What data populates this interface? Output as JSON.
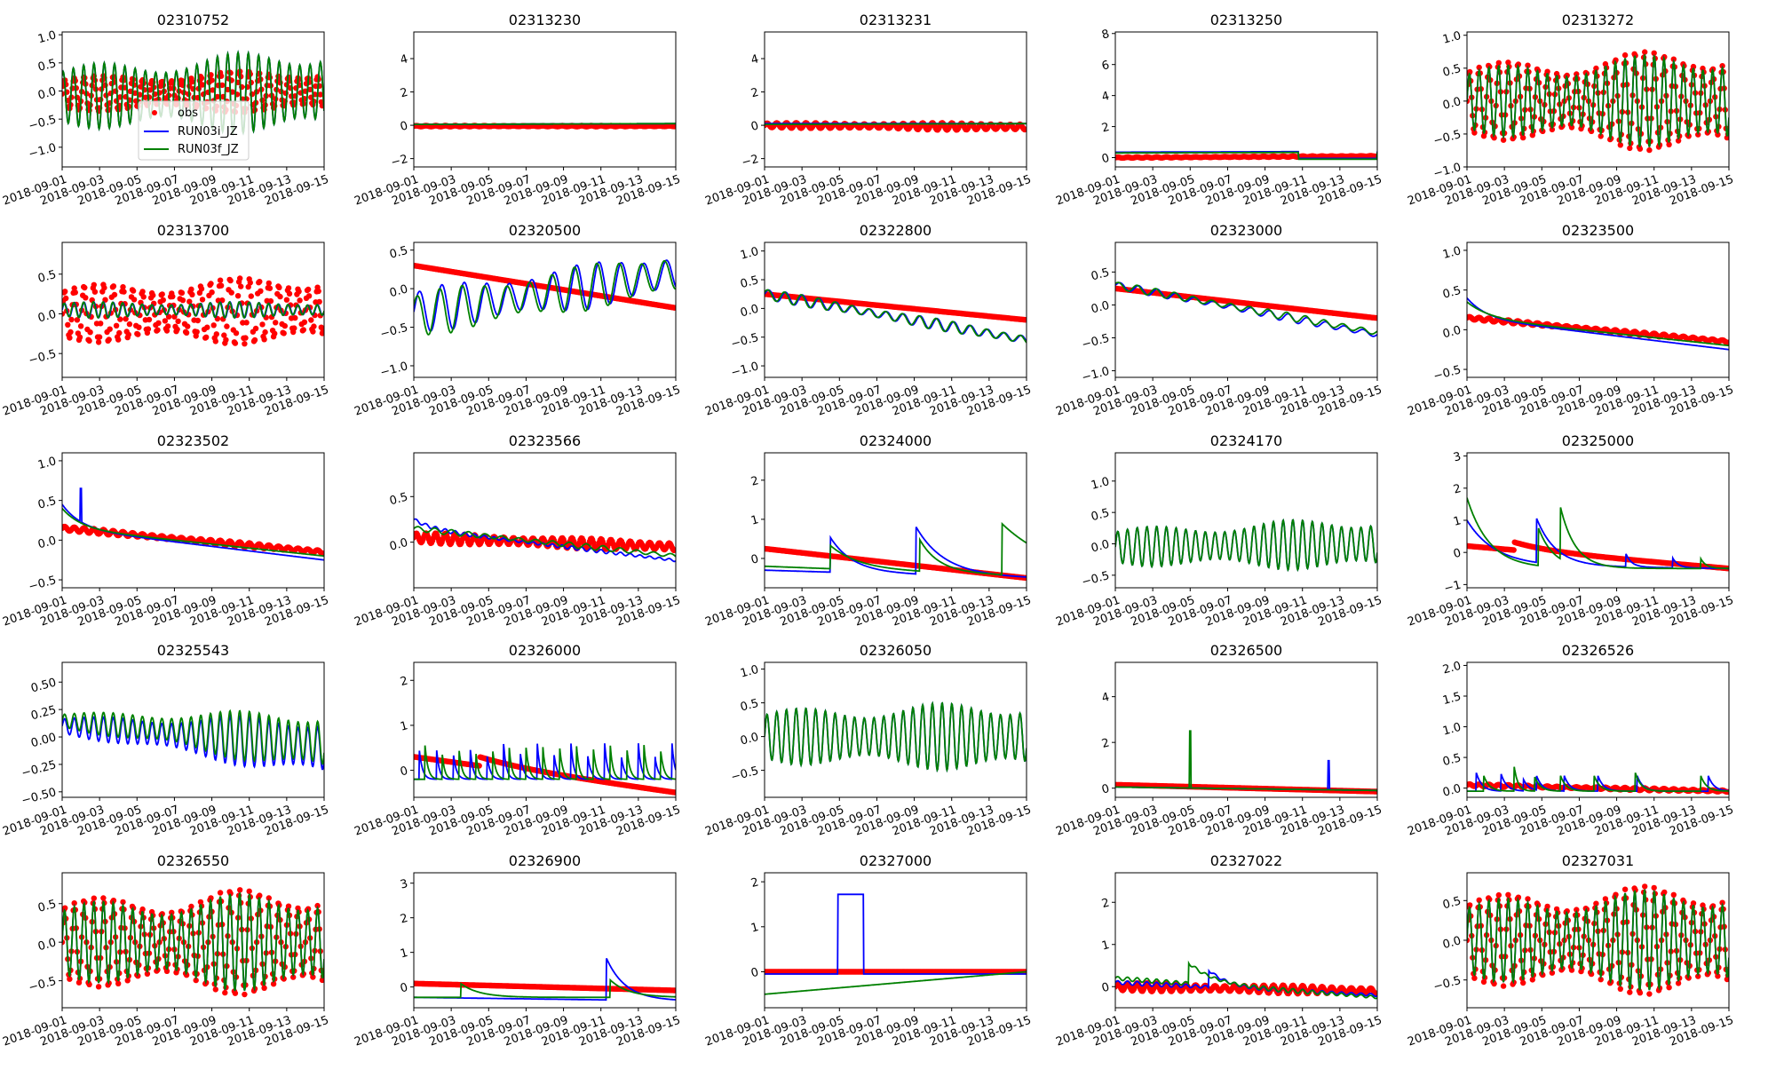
{
  "colors": {
    "obs": "#ff0000",
    "run_i": "#0000ff",
    "run_f": "#008000"
  },
  "legend": {
    "obs": "obs",
    "run_i": "RUN03i_JZ",
    "run_f": "RUN03f_JZ"
  },
  "xticks": [
    "2018-09-01",
    "2018-09-03",
    "2018-09-05",
    "2018-09-07",
    "2018-09-09",
    "2018-09-11",
    "2018-09-13",
    "2018-09-15"
  ],
  "chart_data": [
    {
      "type": "line",
      "title": "02310752",
      "xlim_days": [
        0,
        14
      ],
      "ylim": [
        -1.35,
        1.05
      ],
      "yticks": [
        "−1.0",
        "−0.5",
        "0.0",
        "0.5",
        "1.0"
      ],
      "legend": "lower-center",
      "obs": {
        "trend": [
          -0.05,
          0
        ],
        "amp": [
          0.3,
          0.4
        ],
        "period": 0.52
      },
      "i": {
        "trend": [
          -0.1,
          0
        ],
        "amp": [
          0.55,
          0.8
        ],
        "period": 0.55,
        "phase": 1
      },
      "f": {
        "trend": [
          -0.1,
          0
        ],
        "amp": [
          0.55,
          0.8
        ],
        "period": 0.55,
        "phase": 1
      }
    },
    {
      "type": "line",
      "title": "02313230",
      "ylim": [
        -2.5,
        5.6
      ],
      "yticks": [
        "−2",
        "0",
        "2",
        "4"
      ],
      "obs": {
        "trend": [
          -0.05,
          -0.05
        ],
        "amp": 0.03
      },
      "i": {
        "trend": [
          0.05,
          0.1
        ]
      },
      "f": {
        "trend": [
          0.05,
          0.1
        ]
      }
    },
    {
      "type": "line",
      "title": "02313231",
      "ylim": [
        -2.5,
        5.6
      ],
      "yticks": [
        "−2",
        "0",
        "2",
        "4"
      ],
      "obs": {
        "trend": [
          0,
          -0.1
        ],
        "amp": [
          0.15,
          0.25
        ],
        "period": 0.52
      },
      "i": {
        "trend": [
          0.1,
          0.1
        ]
      },
      "f": {
        "trend": [
          0.05,
          0.1
        ]
      }
    },
    {
      "type": "line",
      "title": "02313250",
      "ylim": [
        -0.6,
        8.1
      ],
      "yticks": [
        "0",
        "2",
        "4",
        "6",
        "8"
      ],
      "obs": {
        "trend": [
          0,
          0.1
        ],
        "amp": 0.03
      },
      "i": {
        "trend": [
          0.35,
          0.4
        ],
        "blocks": [
          [
            9.8,
            14,
            -0.05
          ]
        ]
      },
      "f": {
        "trend": [
          0.3,
          0.35
        ],
        "blocks": [
          [
            9.8,
            14,
            -0.1
          ]
        ]
      }
    },
    {
      "type": "line",
      "title": "02313272",
      "ylim": [
        -1.0,
        1.05
      ],
      "yticks": [
        "−1.0",
        "−0.5",
        "0.0",
        "0.5",
        "1.0"
      ],
      "obs": {
        "trend": [
          0,
          0
        ],
        "amp": [
          0.55,
          0.85
        ],
        "period": 0.52
      },
      "i": {
        "trend": [
          0,
          0
        ],
        "amp": [
          0.5,
          0.8
        ],
        "period": 0.52
      },
      "f": {
        "trend": [
          0,
          0
        ],
        "amp": [
          0.5,
          0.8
        ],
        "period": 0.52
      }
    },
    {
      "type": "line",
      "title": "02313700",
      "ylim": [
        -0.8,
        0.9
      ],
      "yticks": [
        "−0.5",
        "0.0",
        "0.5"
      ],
      "obs": {
        "trend": [
          0,
          0.05
        ],
        "amp": [
          0.35,
          0.45
        ],
        "period": 0.52
      },
      "i": {
        "trend": [
          0.05,
          0.05
        ],
        "amp": 0.1,
        "period": 0.52
      },
      "f": {
        "trend": [
          0.05,
          0.05
        ],
        "amp": 0.1,
        "period": 0.52,
        "phase": 0.3
      }
    },
    {
      "type": "line",
      "title": "02320500",
      "ylim": [
        -1.15,
        0.6
      ],
      "yticks": [
        "−1.0",
        "−0.5",
        "0.0",
        "0.5"
      ],
      "obs": {
        "trend": [
          0.3,
          -0.25
        ]
      },
      "i": {
        "trend": [
          -0.3,
          0.2
        ],
        "amp": 0.3,
        "period": 1.2
      },
      "f": {
        "trend": [
          -0.35,
          0.2
        ],
        "amp": 0.3,
        "period": 1.2,
        "phase": 0.6
      }
    },
    {
      "type": "line",
      "title": "02322800",
      "ylim": [
        -1.2,
        1.15
      ],
      "yticks": [
        "−1.0",
        "−0.5",
        "0.0",
        "0.5",
        "1.0"
      ],
      "obs": {
        "trend": [
          0.25,
          -0.2
        ]
      },
      "i": {
        "trend": [
          0.25,
          -0.55
        ],
        "amp": 0.1,
        "period": 0.9
      },
      "f": {
        "trend": [
          0.25,
          -0.55
        ],
        "amp": 0.1,
        "period": 0.9,
        "phase": 0.4
      }
    },
    {
      "type": "line",
      "title": "02323000",
      "ylim": [
        -1.1,
        0.95
      ],
      "yticks": [
        "−1.0",
        "−0.5",
        "0.0",
        "0.5"
      ],
      "obs": {
        "trend": [
          0.25,
          -0.2
        ]
      },
      "i": {
        "trend": [
          0.3,
          -0.45
        ],
        "amp": 0.06,
        "period": 1.0
      },
      "f": {
        "trend": [
          0.3,
          -0.42
        ],
        "amp": 0.06,
        "period": 1.0,
        "phase": 0.5
      }
    },
    {
      "type": "line",
      "title": "02323500",
      "ylim": [
        -0.6,
        1.1
      ],
      "yticks": [
        "−0.5",
        "0.0",
        "0.5",
        "1.0"
      ],
      "obs": {
        "trend": [
          0.15,
          -0.15
        ],
        "amp": 0.02,
        "period": 0.52
      },
      "i": {
        "trend": [
          0.15,
          -0.25
        ],
        "events": [
          [
            0,
            0.25,
            1
          ]
        ]
      },
      "f": {
        "trend": [
          0.15,
          -0.2
        ],
        "events": [
          [
            0,
            0.2,
            1.2
          ]
        ]
      }
    },
    {
      "type": "line",
      "title": "02323502",
      "ylim": [
        -0.6,
        1.1
      ],
      "yticks": [
        "−0.5",
        "0.0",
        "0.5",
        "1.0"
      ],
      "obs": {
        "trend": [
          0.15,
          -0.15
        ],
        "amp": 0.03,
        "period": 0.52
      },
      "i": {
        "trend": [
          0.15,
          -0.25
        ],
        "events": [
          [
            0,
            0.3,
            1
          ]
        ],
        "spikes": [
          [
            1,
            0.65
          ]
        ]
      },
      "f": {
        "trend": [
          0.15,
          -0.2
        ],
        "events": [
          [
            0,
            0.25,
            1
          ]
        ]
      }
    },
    {
      "type": "line",
      "title": "02323566",
      "ylim": [
        -0.5,
        0.98
      ],
      "yticks": [
        "0.0",
        "0.5"
      ],
      "obs": {
        "trend": [
          0.05,
          -0.05
        ],
        "amp": 0.06,
        "period": 0.52
      },
      "i": {
        "trend": [
          0.15,
          -0.2
        ],
        "amp": 0.02,
        "events": [
          [
            0,
            0.1,
            1
          ]
        ]
      },
      "f": {
        "trend": [
          0.15,
          -0.15
        ],
        "amp": 0.03,
        "period": 0.9
      }
    },
    {
      "type": "line",
      "title": "02324000",
      "ylim": [
        -0.75,
        2.7
      ],
      "yticks": [
        "0",
        "1",
        "2"
      ],
      "obs": {
        "trend": [
          0.25,
          -0.5
        ]
      },
      "i": {
        "trend": [
          -0.3,
          -0.5
        ],
        "events": [
          [
            3.5,
            0.9,
            1.2
          ],
          [
            8.1,
            1.2,
            1.5
          ]
        ]
      },
      "f": {
        "trend": [
          -0.2,
          -0.45
        ],
        "events": [
          [
            3.5,
            0.6,
            1.5
          ],
          [
            8.3,
            0.8,
            1
          ],
          [
            12.7,
            1.3,
            3
          ]
        ]
      }
    },
    {
      "type": "line",
      "title": "02324170",
      "ylim": [
        -0.7,
        1.45
      ],
      "yticks": [
        "−0.5",
        "0.0",
        "0.5",
        "1.0"
      ],
      "obs": null,
      "i": {
        "trend": [
          -0.05,
          0
        ],
        "amp": [
          0.3,
          0.45
        ],
        "period": 0.52
      },
      "f": {
        "trend": [
          -0.05,
          0
        ],
        "amp": [
          0.3,
          0.45
        ],
        "period": 0.52
      }
    },
    {
      "type": "line",
      "title": "02325000",
      "ylim": [
        -1.1,
        3.1
      ],
      "yticks": [
        "−1",
        "0",
        "1",
        "2",
        "3"
      ],
      "obs": {
        "trend": [
          0.2,
          -0.5
        ],
        "events": [
          [
            2.5,
            0.25,
            2
          ]
        ]
      },
      "i": {
        "trend": [
          -0.4,
          -0.5
        ],
        "events": [
          [
            0,
            1.4,
            1.5
          ],
          [
            3.7,
            1.4,
            1
          ],
          [
            8.5,
            0.4,
            0.3
          ],
          [
            11,
            0.3,
            0.3
          ]
        ]
      },
      "f": {
        "trend": [
          -0.5,
          -0.5
        ],
        "events": [
          [
            0,
            2.2,
            1.2
          ],
          [
            3.8,
            1.2,
            0.8
          ],
          [
            5,
            1.6,
            0.8
          ],
          [
            12.5,
            0.3,
            0.3
          ]
        ]
      }
    },
    {
      "type": "line",
      "title": "02325543",
      "ylim": [
        -0.55,
        0.68
      ],
      "yticks": [
        "−0.50",
        "−0.25",
        "0.00",
        "0.25",
        "0.50"
      ],
      "obs": null,
      "i": {
        "trend": [
          0.1,
          -0.1
        ],
        "amp": [
          0.08,
          0.3
        ],
        "period": 0.52
      },
      "f": {
        "trend": [
          0.15,
          -0.05
        ],
        "amp": [
          0.07,
          0.3
        ],
        "period": 0.52
      }
    },
    {
      "type": "line",
      "title": "02326000",
      "ylim": [
        -0.6,
        2.4
      ],
      "yticks": [
        "0",
        "1",
        "2"
      ],
      "obs": {
        "trend": [
          0.3,
          -0.5
        ],
        "events": [
          [
            3.5,
            0.2,
            3
          ]
        ]
      },
      "i": {
        "trend": [
          -0.2,
          -0.2
        ],
        "pulse": {
          "start": 0.3,
          "every": 0.9,
          "h": 0.8,
          "w": 0.15
        }
      },
      "f": {
        "trend": [
          -0.2,
          -0.2
        ],
        "pulse": {
          "start": 0.6,
          "every": 0.9,
          "h": 0.8,
          "w": 0.15
        }
      }
    },
    {
      "type": "line",
      "title": "02326050",
      "ylim": [
        -0.9,
        1.1
      ],
      "yticks": [
        "−0.5",
        "0.0",
        "0.5",
        "1.0"
      ],
      "obs": null,
      "i": {
        "trend": [
          0,
          0
        ],
        "amp": [
          0.4,
          0.55
        ],
        "period": 0.52
      },
      "f": {
        "trend": [
          0,
          0
        ],
        "amp": [
          0.4,
          0.55
        ],
        "period": 0.52
      }
    },
    {
      "type": "line",
      "title": "02326500",
      "ylim": [
        -0.4,
        5.5
      ],
      "yticks": [
        "0",
        "2",
        "4"
      ],
      "obs": {
        "trend": [
          0.15,
          -0.15
        ]
      },
      "i": {
        "trend": [
          0.05,
          -0.1
        ],
        "spikes": [
          [
            11.4,
            1.2
          ]
        ]
      },
      "f": {
        "trend": [
          0.05,
          -0.1
        ],
        "spikes": [
          [
            4,
            2.5
          ]
        ]
      }
    },
    {
      "type": "line",
      "title": "02326526",
      "ylim": [
        -0.15,
        2.05
      ],
      "yticks": [
        "0.0",
        "0.5",
        "1.0",
        "1.5",
        "2.0"
      ],
      "obs": {
        "trend": [
          0.05,
          -0.05
        ],
        "amp": 0.02
      },
      "i": {
        "trend": [
          -0.05,
          -0.05
        ],
        "events": [
          [
            0.5,
            0.3,
            0.3
          ],
          [
            1.8,
            0.3,
            0.3
          ],
          [
            3,
            0.2,
            0.3
          ],
          [
            3.7,
            0.25,
            0.3
          ],
          [
            5.2,
            0.25,
            0.3
          ],
          [
            7,
            0.25,
            0.3
          ],
          [
            9.1,
            0.25,
            0.3
          ],
          [
            12.9,
            0.25,
            0.3
          ]
        ]
      },
      "f": {
        "trend": [
          -0.05,
          -0.05
        ],
        "events": [
          [
            0.9,
            0.25,
            0.3
          ],
          [
            2.5,
            0.45,
            0.2
          ],
          [
            3.6,
            0.25,
            0.3
          ],
          [
            5,
            0.25,
            0.3
          ],
          [
            6.8,
            0.25,
            0.3
          ],
          [
            9,
            0.3,
            0.3
          ],
          [
            12.5,
            0.25,
            0.3
          ]
        ]
      }
    },
    {
      "type": "line",
      "title": "02326550",
      "ylim": [
        -0.85,
        0.9
      ],
      "yticks": [
        "−0.5",
        "0.0",
        "0.5"
      ],
      "obs": {
        "trend": [
          0,
          0
        ],
        "amp": [
          0.55,
          0.75
        ],
        "period": 0.52
      },
      "i": {
        "trend": [
          0,
          0
        ],
        "amp": [
          0.5,
          0.7
        ],
        "period": 0.52
      },
      "f": {
        "trend": [
          0,
          0
        ],
        "amp": [
          0.5,
          0.7
        ],
        "period": 0.52
      }
    },
    {
      "type": "line",
      "title": "02326900",
      "ylim": [
        -0.6,
        3.3
      ],
      "yticks": [
        "0",
        "1",
        "2",
        "3"
      ],
      "obs": {
        "trend": [
          0.1,
          -0.1
        ]
      },
      "i": {
        "trend": [
          -0.3,
          -0.4
        ],
        "events": [
          [
            10.3,
            1.2,
            1
          ]
        ]
      },
      "f": {
        "trend": [
          -0.3,
          -0.3
        ],
        "events": [
          [
            2.5,
            0.4,
            1
          ],
          [
            10.5,
            0.5,
            1
          ]
        ]
      }
    },
    {
      "type": "line",
      "title": "02327000",
      "ylim": [
        -0.8,
        2.2
      ],
      "yticks": [
        "0",
        "1",
        "2"
      ],
      "obs": {
        "trend": [
          0,
          0
        ]
      },
      "i": {
        "trend": [
          -0.05,
          -0.05
        ],
        "blocks": [
          [
            3.9,
            5.3,
            1.72
          ]
        ]
      },
      "f": {
        "trend": [
          -0.5,
          0
        ]
      }
    },
    {
      "type": "line",
      "title": "02327022",
      "ylim": [
        -0.5,
        2.7
      ],
      "yticks": [
        "0",
        "1",
        "2"
      ],
      "obs": {
        "trend": [
          0,
          -0.1
        ],
        "amp": 0.1,
        "period": 0.52
      },
      "i": {
        "trend": [
          0.1,
          -0.2
        ],
        "amp": 0.05,
        "events": [
          [
            5,
            0.4,
            1
          ]
        ]
      },
      "f": {
        "trend": [
          0.2,
          -0.25
        ],
        "amp": 0.05,
        "events": [
          [
            3.9,
            0.5,
            1.3
          ]
        ]
      }
    },
    {
      "type": "line",
      "title": "02327031",
      "ylim": [
        -0.85,
        0.85
      ],
      "yticks": [
        "−0.5",
        "0.0",
        "0.5"
      ],
      "obs": {
        "trend": [
          0,
          0
        ],
        "amp": [
          0.55,
          0.75
        ],
        "period": 0.52
      },
      "i": {
        "trend": [
          0,
          0
        ],
        "amp": [
          0.5,
          0.7
        ],
        "period": 0.52
      },
      "f": {
        "trend": [
          0,
          0
        ],
        "amp": [
          0.5,
          0.7
        ],
        "period": 0.52
      }
    }
  ]
}
